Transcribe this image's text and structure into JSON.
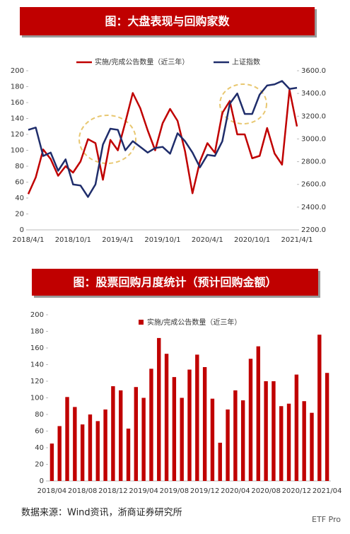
{
  "chart_data": [
    {
      "type": "line",
      "title": "图：大盘表现与回购家数",
      "categories": [
        "2018/4/1",
        null,
        null,
        null,
        null,
        null,
        "2018/10/1",
        null,
        null,
        null,
        null,
        null,
        "2019/4/1",
        null,
        null,
        null,
        null,
        null,
        "2019/10/1",
        null,
        null,
        null,
        null,
        null,
        "2020/4/1",
        null,
        null,
        null,
        null,
        null,
        "2020/10/1",
        null,
        null,
        null,
        null,
        null,
        "2021/4/1"
      ],
      "series": [
        {
          "name": "实施/完成公告数量（近三年）",
          "color": "#c00000",
          "values": [
            45,
            66,
            101,
            89,
            68,
            80,
            72,
            86,
            114,
            109,
            63,
            113,
            100,
            135,
            172,
            153,
            125,
            100,
            134,
            152,
            137,
            99,
            46,
            86,
            109,
            97,
            147,
            162,
            120,
            120,
            90,
            93,
            128,
            96,
            82,
            176,
            130
          ]
        },
        {
          "name": "上证指数",
          "color": "#1f2d6b",
          "axis": "y2",
          "values": [
            3080,
            3100,
            2850,
            2880,
            2720,
            2820,
            2600,
            2590,
            2490,
            2600,
            2950,
            3090,
            3080,
            2900,
            2980,
            2930,
            2880,
            2920,
            2930,
            2870,
            3050,
            2980,
            2880,
            2750,
            2860,
            2850,
            2980,
            3310,
            3400,
            3220,
            3220,
            3390,
            3470,
            3480,
            3510,
            3440,
            3450
          ]
        }
      ],
      "ylim": [
        0,
        200
      ],
      "yticks": [
        0,
        20,
        40,
        60,
        80,
        100,
        120,
        140,
        160,
        180,
        200
      ],
      "y2lim": [
        2200,
        3600
      ],
      "y2ticks": [
        {
          "value": 2200,
          "label": "2200.0"
        },
        {
          "value": 2400,
          "label": "2400.0"
        },
        {
          "value": 2600,
          "label": "2600.0"
        },
        {
          "value": 2800,
          "label": "2800.0"
        },
        {
          "value": 3000,
          "label": "3000.0"
        },
        {
          "value": 3200,
          "label": "3200.0"
        },
        {
          "value": 3400,
          "label": "3400.0"
        },
        {
          "value": 3600,
          "label": "3600.0"
        }
      ]
    },
    {
      "type": "bar",
      "title": "图：股票回购月度统计（预计回购金额）",
      "categories": [
        "2018/04",
        null,
        null,
        null,
        "2018/08",
        null,
        null,
        null,
        "2018/12",
        null,
        null,
        null,
        "2019/04",
        null,
        null,
        null,
        "2019/08",
        null,
        null,
        null,
        "2019/12",
        null,
        null,
        null,
        "2020/04",
        null,
        null,
        null,
        "2020/08",
        null,
        null,
        null,
        "2020/12",
        null,
        null,
        null,
        "2021/04"
      ],
      "series": [
        {
          "name": "实施/完成公告数量（近三年）",
          "color": "#c00000",
          "values": [
            45,
            66,
            101,
            89,
            68,
            80,
            72,
            86,
            114,
            109,
            63,
            113,
            100,
            135,
            172,
            153,
            125,
            100,
            134,
            152,
            137,
            99,
            46,
            86,
            109,
            97,
            147,
            162,
            120,
            120,
            90,
            93,
            128,
            96,
            82,
            176,
            130
          ]
        }
      ],
      "ylim": [
        0,
        200
      ],
      "yticks": [
        0,
        20,
        40,
        60,
        80,
        100,
        120,
        140,
        160,
        180,
        200
      ]
    }
  ],
  "source": "数据来源：Wind资讯，浙商证券研究所",
  "watermark": "ETF Pro"
}
